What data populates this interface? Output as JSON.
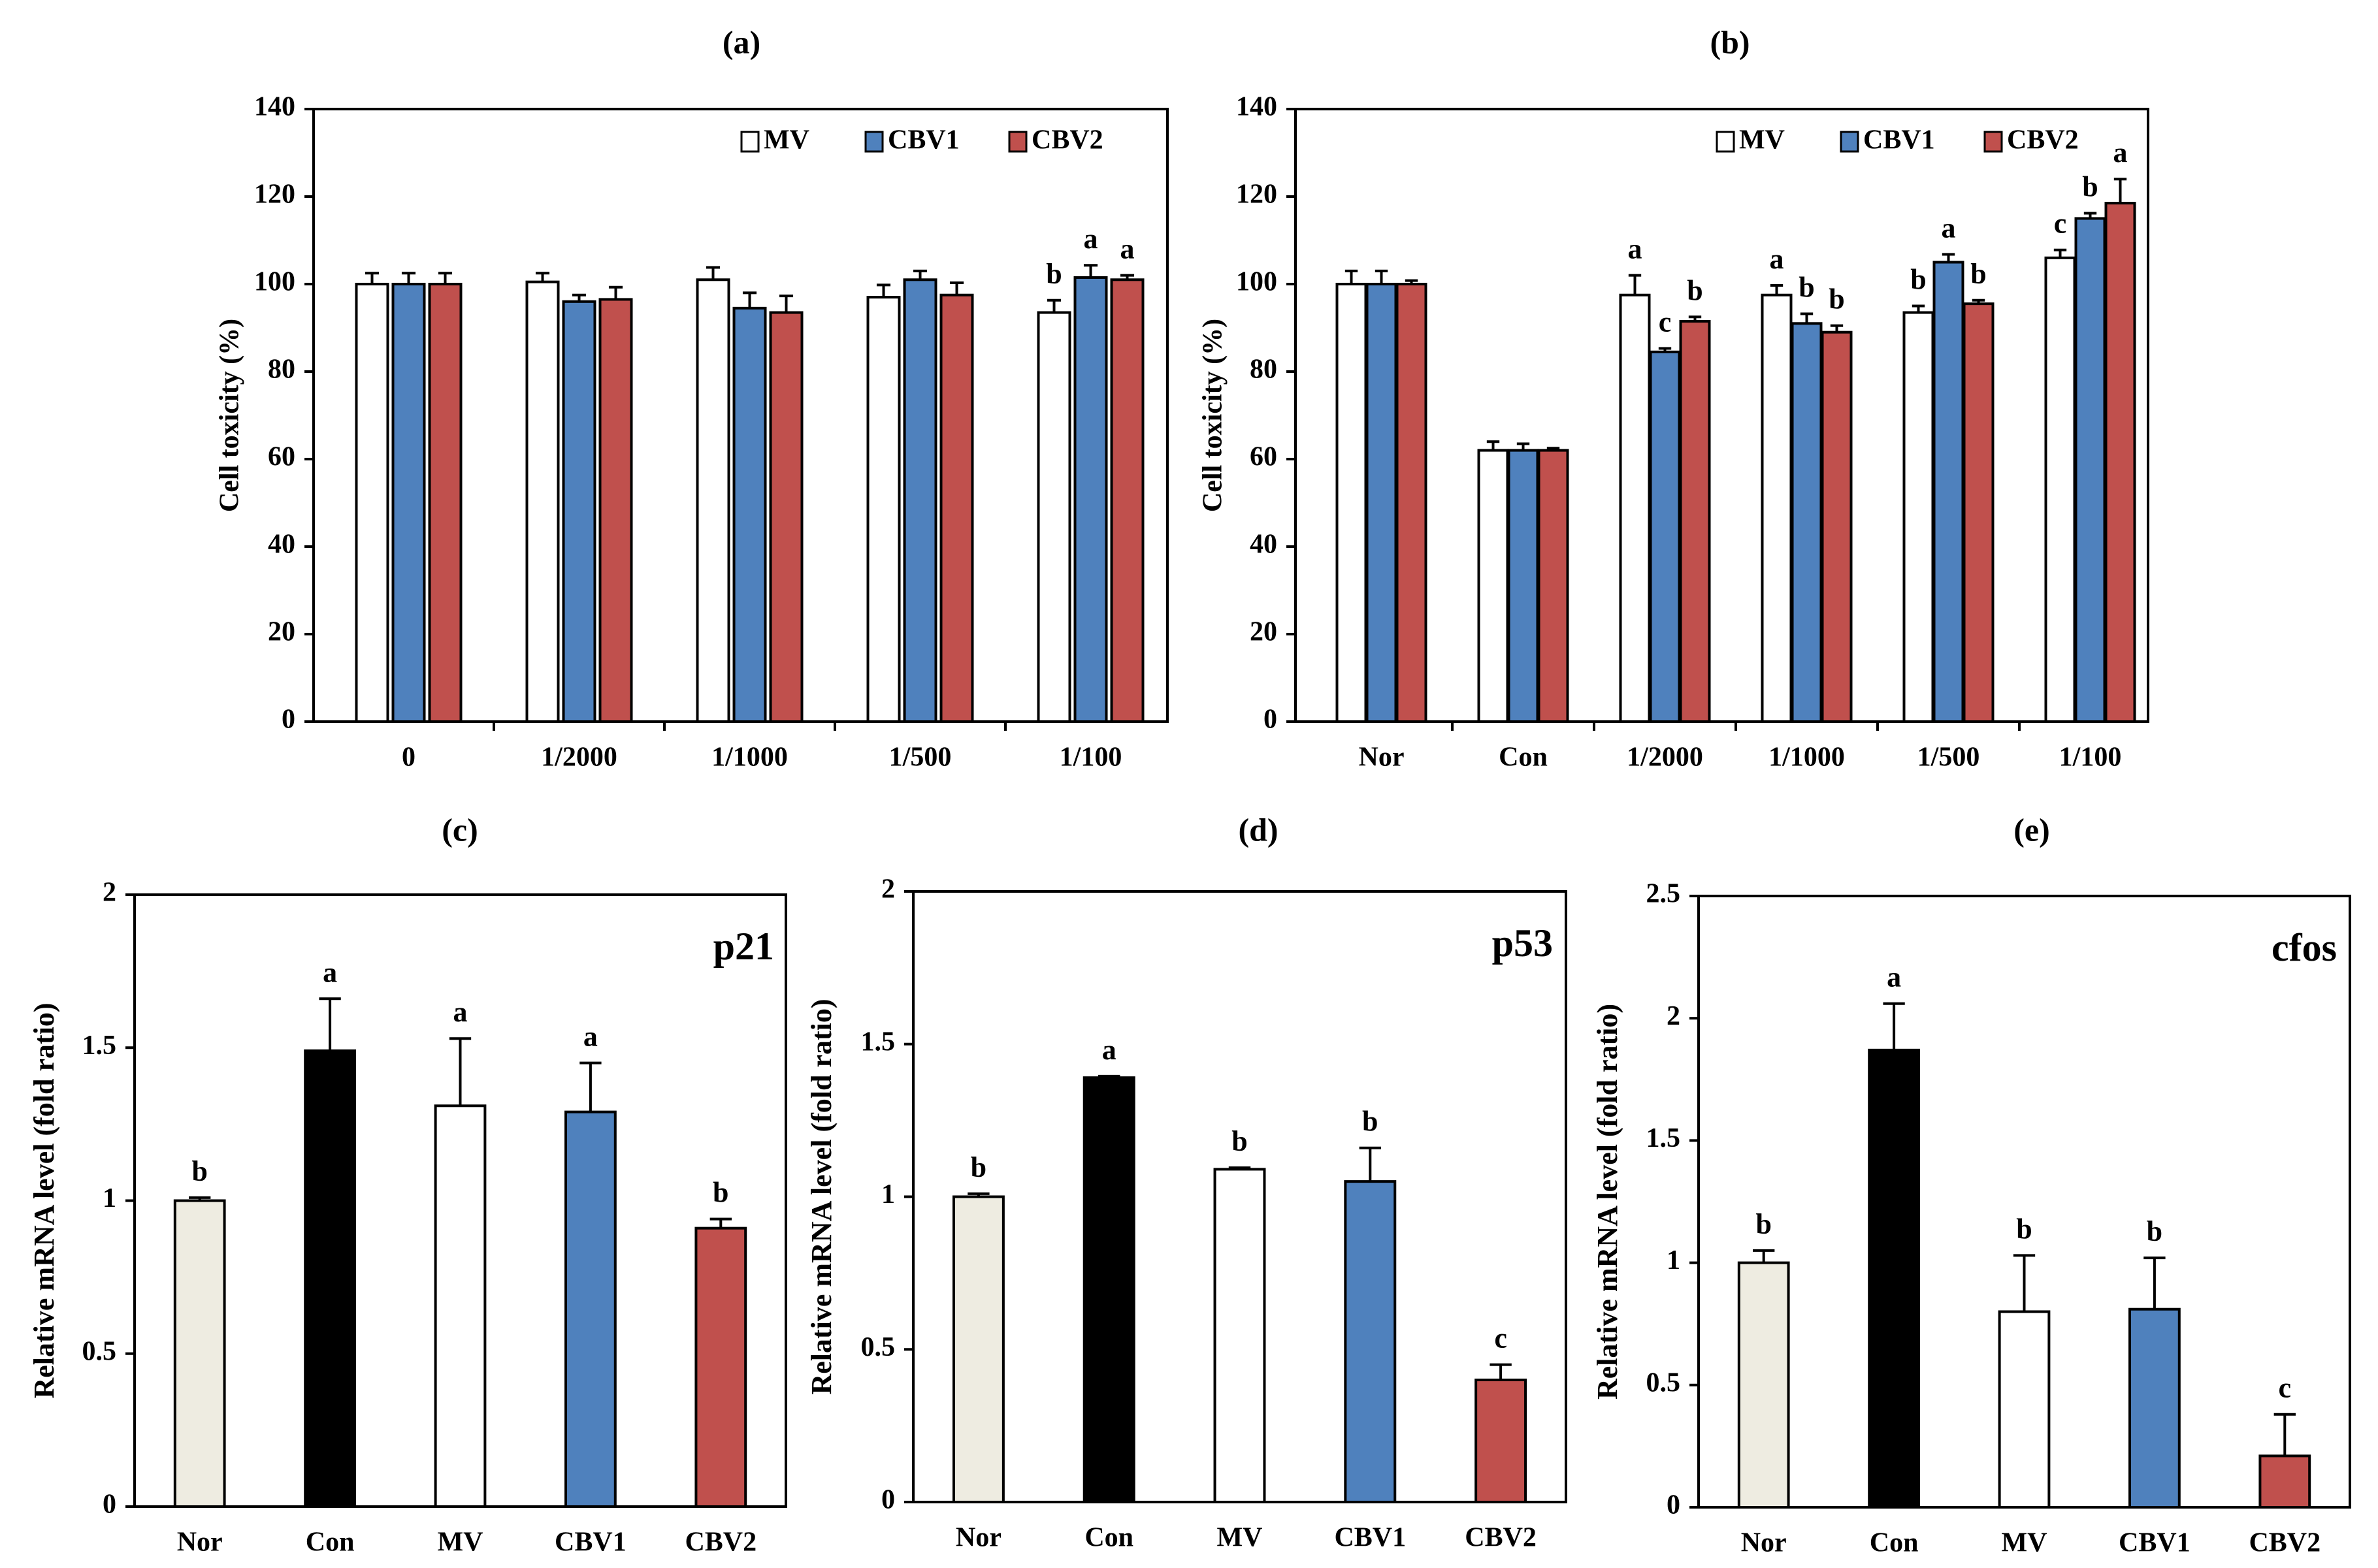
{
  "colors": {
    "MV": "#ffffff",
    "CBV1": "#4f81bd",
    "CBV2": "#c0504d",
    "Nor": "#eeece1",
    "Con": "#000000",
    "edge": "#000000"
  },
  "chart_data": [
    {
      "id": "a",
      "panel_label": "(a)",
      "type": "bar",
      "ylabel": "Cell toxicity (%)",
      "ylim": [
        0,
        140
      ],
      "yticks": [
        "0",
        "20",
        "40",
        "60",
        "80",
        "100",
        "120",
        "140"
      ],
      "legend": [
        "MV",
        "CBV1",
        "CBV2"
      ],
      "legend_position": "top-right",
      "categories": [
        "0",
        "1/2000",
        "1/1000",
        "1/500",
        "1/100"
      ],
      "series": [
        {
          "name": "MV",
          "color": "MV",
          "values": [
            100,
            100.5,
            101,
            97,
            93.5
          ],
          "errors": [
            2.5,
            2,
            2.8,
            2.8,
            2.8
          ],
          "letters": [
            "",
            "",
            "",
            "",
            "b"
          ]
        },
        {
          "name": "CBV1",
          "color": "CBV1",
          "values": [
            100,
            96,
            94.5,
            101,
            101.5
          ],
          "errors": [
            2.5,
            1.5,
            3.5,
            2,
            2.8
          ],
          "letters": [
            "",
            "",
            "",
            "",
            "a"
          ]
        },
        {
          "name": "CBV2",
          "color": "CBV2",
          "values": [
            100,
            96.5,
            93.5,
            97.5,
            101
          ],
          "errors": [
            2.5,
            2.8,
            3.8,
            2.8,
            1
          ],
          "letters": [
            "",
            "",
            "",
            "",
            "a"
          ]
        }
      ]
    },
    {
      "id": "b",
      "panel_label": "(b)",
      "type": "bar",
      "ylabel": "Cell toxicity (%)",
      "ylim": [
        0,
        140
      ],
      "yticks": [
        "0",
        "20",
        "40",
        "60",
        "80",
        "100",
        "120",
        "140"
      ],
      "legend": [
        "MV",
        "CBV1",
        "CBV2"
      ],
      "legend_position": "top-right",
      "categories": [
        "Nor",
        "Con",
        "1/2000",
        "1/1000",
        "1/500",
        "1/100"
      ],
      "series": [
        {
          "name": "MV",
          "color": "MV",
          "values": [
            100,
            62,
            97.5,
            97.5,
            93.5,
            106
          ],
          "errors": [
            3,
            2,
            4.5,
            2.2,
            1.5,
            1.8
          ],
          "letters": [
            "",
            "",
            "a",
            "a",
            "b",
            "c"
          ]
        },
        {
          "name": "CBV1",
          "color": "CBV1",
          "values": [
            100,
            62,
            84.5,
            91,
            105,
            115
          ],
          "errors": [
            3,
            1.5,
            0.8,
            2.2,
            1.8,
            1.2
          ],
          "letters": [
            "",
            "",
            "c",
            "b",
            "a",
            "b"
          ]
        },
        {
          "name": "CBV2",
          "color": "CBV2",
          "values": [
            100,
            62,
            91.5,
            89,
            95.5,
            118.5
          ],
          "errors": [
            0.8,
            0.5,
            1,
            1.5,
            0.8,
            5.5
          ],
          "letters": [
            "",
            "",
            "b",
            "b",
            "b",
            "a"
          ]
        }
      ]
    },
    {
      "id": "c",
      "panel_label": "(c)",
      "type": "bar",
      "gene": "p21",
      "ylabel": "Relative mRNA level (fold ratio)",
      "ylim": [
        0,
        2
      ],
      "yticks": [
        "0",
        "0.5",
        "1",
        "1.5",
        "2"
      ],
      "categories": [
        "Nor",
        "Con",
        "MV",
        "CBV1",
        "CBV2"
      ],
      "bar_colors": [
        "Nor",
        "Con",
        "MV",
        "CBV1",
        "CBV2"
      ],
      "values": [
        1.0,
        1.49,
        1.31,
        1.29,
        0.91
      ],
      "errors": [
        0.01,
        0.17,
        0.22,
        0.16,
        0.03
      ],
      "letters": [
        "b",
        "a",
        "a",
        "a",
        "b"
      ]
    },
    {
      "id": "d",
      "panel_label": "(d)",
      "type": "bar",
      "gene": "p53",
      "ylabel": "Relative mRNA level (fold ratio)",
      "ylim": [
        0,
        2
      ],
      "yticks": [
        "0",
        "0.5",
        "1",
        "1.5",
        "2"
      ],
      "categories": [
        "Nor",
        "Con",
        "MV",
        "CBV1",
        "CBV2"
      ],
      "bar_colors": [
        "Nor",
        "Con",
        "MV",
        "CBV1",
        "CBV2"
      ],
      "values": [
        1.0,
        1.39,
        1.09,
        1.05,
        0.4
      ],
      "errors": [
        0.01,
        0.005,
        0.005,
        0.11,
        0.05
      ],
      "letters": [
        "b",
        "a",
        "b",
        "b",
        "c"
      ]
    },
    {
      "id": "e",
      "panel_label": "(e)",
      "type": "bar",
      "gene": "cfos",
      "ylabel": "Relative mRNA level (fold ratio)",
      "ylim": [
        0,
        2.5
      ],
      "yticks": [
        "0",
        "0.5",
        "1",
        "1.5",
        "2",
        "2.5"
      ],
      "categories": [
        "Nor",
        "Con",
        "MV",
        "CBV1",
        "CBV2"
      ],
      "bar_colors": [
        "Nor",
        "Con",
        "MV",
        "CBV1",
        "CBV2"
      ],
      "values": [
        1.0,
        1.87,
        0.8,
        0.81,
        0.21
      ],
      "errors": [
        0.05,
        0.19,
        0.23,
        0.21,
        0.17
      ],
      "letters": [
        "b",
        "a",
        "b",
        "b",
        "c"
      ]
    }
  ]
}
